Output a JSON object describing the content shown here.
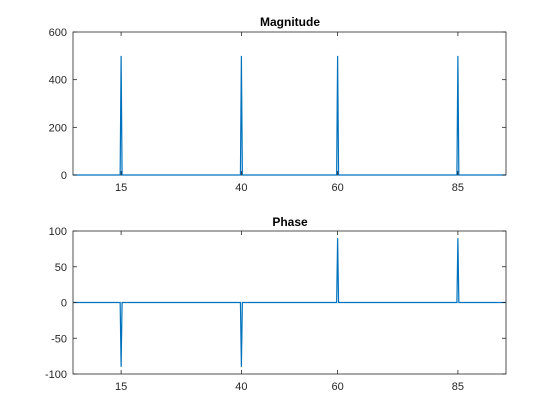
{
  "chart_data": [
    {
      "type": "line",
      "title": "Magnitude",
      "xlabel": "",
      "ylabel": "",
      "xlim": [
        5,
        95
      ],
      "ylim": [
        0,
        600
      ],
      "xticks": [
        15,
        40,
        60,
        85
      ],
      "yticks": [
        0,
        200,
        400,
        600
      ],
      "grid": false,
      "series": [
        {
          "color": "#0072BD",
          "x": [
            5,
            14.8,
            15,
            15.2,
            39.8,
            40,
            40.2,
            59.8,
            60,
            60.2,
            84.8,
            85,
            85.2,
            95
          ],
          "y": [
            0,
            0,
            500,
            0,
            0,
            500,
            0,
            0,
            500,
            0,
            0,
            500,
            0,
            0
          ]
        }
      ]
    },
    {
      "type": "line",
      "title": "Phase",
      "xlabel": "",
      "ylabel": "",
      "xlim": [
        5,
        95
      ],
      "ylim": [
        -100,
        100
      ],
      "xticks": [
        15,
        40,
        60,
        85
      ],
      "yticks": [
        -100,
        -50,
        0,
        50,
        100
      ],
      "grid": false,
      "series": [
        {
          "color": "#0072BD",
          "x": [
            5,
            14.8,
            15,
            15.2,
            39.8,
            40,
            40.2,
            59.8,
            60,
            60.2,
            84.8,
            85,
            85.2,
            95
          ],
          "y": [
            0,
            0,
            -90,
            0,
            0,
            -90,
            0,
            0,
            90,
            0,
            0,
            90,
            0,
            0
          ]
        }
      ]
    }
  ]
}
